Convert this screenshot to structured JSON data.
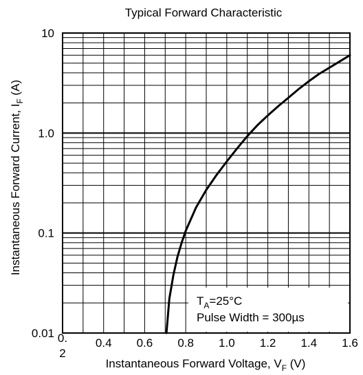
{
  "chart_data": {
    "type": "line",
    "title": "Typical Forward Characteristic",
    "xlabel": {
      "main": "Instantaneous Forward Voltage, V",
      "sub": "F",
      "unit": " (V)"
    },
    "ylabel": {
      "main": "Instantaneous Forward Current, I",
      "sub": "F",
      "unit": " (A)"
    },
    "x_scale": "linear",
    "y_scale": "log",
    "xlim": [
      0.2,
      1.6
    ],
    "ylim": [
      0.01,
      10
    ],
    "grid": true,
    "x_tick_labels": [
      "0.4",
      "0.6",
      "0.8",
      "1.0",
      "1.2",
      "1.4",
      "1.6"
    ],
    "x_tick_values": [
      0.4,
      0.6,
      0.8,
      1.0,
      1.2,
      1.4,
      1.6
    ],
    "x_origin_label": "0.2",
    "y_tick_labels": [
      "0.01",
      "0.1",
      "1.0",
      "10"
    ],
    "y_tick_values": [
      0.01,
      0.1,
      1.0,
      10
    ],
    "annotation": {
      "line1_main": "T",
      "line1_sub": "A",
      "line1_rest": "=25°C",
      "line2": "Pulse Width = 300µs"
    },
    "series": [
      {
        "x": [
          0.706,
          0.72,
          0.74,
          0.76,
          0.78,
          0.8,
          0.85,
          0.9,
          0.95,
          1.0,
          1.05,
          1.1,
          1.15,
          1.2,
          1.25,
          1.3,
          1.35,
          1.4,
          1.45,
          1.5,
          1.55,
          1.6
        ],
        "y": [
          0.01,
          0.022,
          0.038,
          0.058,
          0.08,
          0.105,
          0.18,
          0.27,
          0.38,
          0.52,
          0.7,
          0.93,
          1.2,
          1.5,
          1.85,
          2.25,
          2.75,
          3.3,
          3.9,
          4.5,
          5.2,
          6.0
        ]
      }
    ]
  }
}
